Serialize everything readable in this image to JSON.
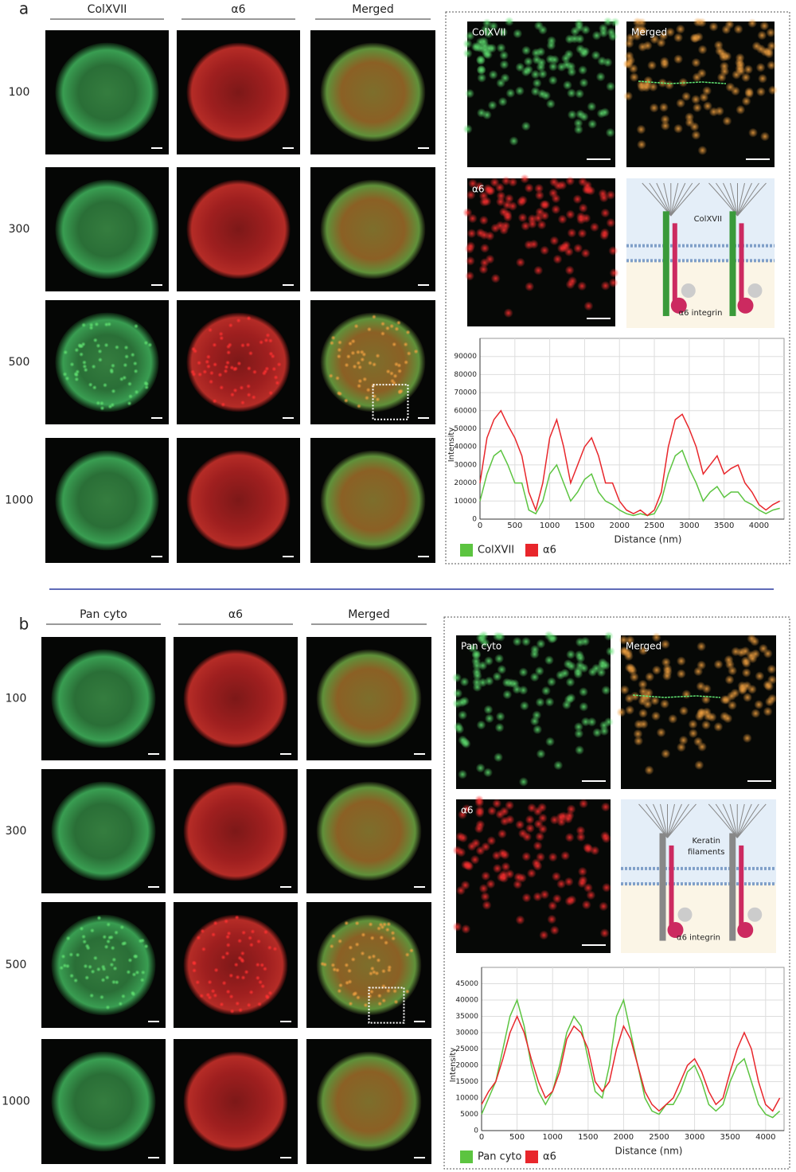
{
  "panels": [
    {
      "label": "a",
      "columns": [
        "ColXVII",
        "α6",
        "Merged"
      ],
      "rows": [
        "100",
        "300",
        "500",
        "1000"
      ],
      "zoom_labels": [
        "ColXVII",
        "Merged",
        "α6"
      ],
      "diagram_labels": [
        "ColXVII",
        "α6 integrin"
      ]
    },
    {
      "label": "b",
      "columns": [
        "Pan cyto",
        "α6",
        "Merged"
      ],
      "rows": [
        "100",
        "300",
        "500",
        "1000"
      ],
      "zoom_labels": [
        "Pan cyto",
        "Merged",
        "α6"
      ],
      "diagram_labels": [
        "Keratin",
        "filaments",
        "α6 integrin"
      ]
    }
  ],
  "chart_data": [
    {
      "type": "line",
      "xlabel": "Distance (nm)",
      "ylabel": "Intensity",
      "x": [
        0,
        100,
        200,
        300,
        400,
        500,
        600,
        700,
        800,
        900,
        1000,
        1100,
        1200,
        1300,
        1400,
        1500,
        1600,
        1700,
        1800,
        1900,
        2000,
        2100,
        2200,
        2300,
        2400,
        2500,
        2600,
        2700,
        2800,
        2900,
        3000,
        3100,
        3200,
        3300,
        3400,
        3500,
        3600,
        3700,
        3800,
        3900,
        4000,
        4100,
        4200,
        4300
      ],
      "series": [
        {
          "name": "ColXVII",
          "color": "#5cc440",
          "values": [
            10000,
            25000,
            35000,
            38000,
            30000,
            20000,
            20000,
            5000,
            3000,
            10000,
            25000,
            30000,
            20000,
            10000,
            15000,
            22000,
            25000,
            15000,
            10000,
            8000,
            5000,
            3000,
            2000,
            3000,
            2000,
            3000,
            10000,
            25000,
            35000,
            38000,
            28000,
            20000,
            10000,
            15000,
            18000,
            12000,
            15000,
            15000,
            10000,
            8000,
            5000,
            3000,
            5000,
            6000
          ]
        },
        {
          "name": "α6",
          "color": "#e8262b",
          "values": [
            20000,
            45000,
            55000,
            60000,
            52000,
            45000,
            35000,
            15000,
            5000,
            20000,
            45000,
            55000,
            40000,
            20000,
            30000,
            40000,
            45000,
            35000,
            20000,
            20000,
            10000,
            5000,
            3000,
            5000,
            2000,
            5000,
            15000,
            40000,
            55000,
            58000,
            50000,
            40000,
            25000,
            30000,
            35000,
            25000,
            28000,
            30000,
            20000,
            15000,
            8000,
            5000,
            8000,
            10000
          ]
        }
      ],
      "xlim": [
        0,
        4360
      ],
      "ylim": [
        0,
        100000
      ],
      "xticks": [
        0,
        500,
        1000,
        1500,
        2000,
        2500,
        3000,
        3500,
        4000
      ],
      "yticks": [
        0,
        10000,
        20000,
        30000,
        40000,
        50000,
        60000,
        70000,
        80000,
        90000
      ],
      "grid": true
    },
    {
      "type": "line",
      "xlabel": "Distance (nm)",
      "ylabel": "Intensity",
      "x": [
        0,
        100,
        200,
        300,
        400,
        500,
        600,
        700,
        800,
        900,
        1000,
        1100,
        1200,
        1300,
        1400,
        1500,
        1600,
        1700,
        1800,
        1900,
        2000,
        2100,
        2200,
        2300,
        2400,
        2500,
        2600,
        2700,
        2800,
        2900,
        3000,
        3100,
        3200,
        3300,
        3400,
        3500,
        3600,
        3700,
        3800,
        3900,
        4000,
        4100,
        4200
      ],
      "series": [
        {
          "name": "Pan cyto",
          "color": "#5cc440",
          "values": [
            5000,
            10000,
            15000,
            25000,
            35000,
            40000,
            32000,
            20000,
            12000,
            8000,
            12000,
            20000,
            30000,
            35000,
            32000,
            22000,
            12000,
            10000,
            20000,
            35000,
            40000,
            30000,
            20000,
            10000,
            6000,
            5000,
            8000,
            8000,
            12000,
            18000,
            20000,
            15000,
            8000,
            6000,
            8000,
            15000,
            20000,
            22000,
            15000,
            8000,
            5000,
            4000,
            6000
          ]
        },
        {
          "name": "α6",
          "color": "#e8262b",
          "values": [
            8000,
            12000,
            15000,
            22000,
            30000,
            35000,
            30000,
            22000,
            15000,
            10000,
            12000,
            18000,
            28000,
            32000,
            30000,
            25000,
            15000,
            12000,
            15000,
            25000,
            32000,
            28000,
            20000,
            12000,
            8000,
            6000,
            8000,
            10000,
            15000,
            20000,
            22000,
            18000,
            12000,
            8000,
            10000,
            18000,
            25000,
            30000,
            25000,
            15000,
            8000,
            6000,
            10000
          ]
        }
      ],
      "xlim": [
        0,
        4260
      ],
      "ylim": [
        0,
        50000
      ],
      "xticks": [
        0,
        500,
        1000,
        1500,
        2000,
        2500,
        3000,
        3500,
        4000
      ],
      "yticks": [
        0,
        5000,
        10000,
        15000,
        20000,
        25000,
        30000,
        35000,
        40000,
        45000
      ],
      "grid": true
    }
  ]
}
